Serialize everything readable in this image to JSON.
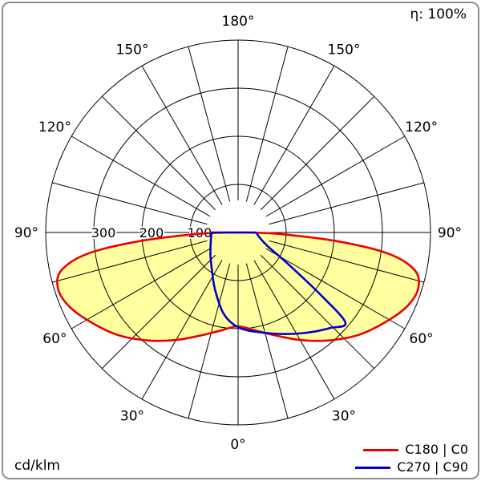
{
  "header": {
    "efficiency": "η: 100%"
  },
  "footer": {
    "units": "cd/klm"
  },
  "chart_data": {
    "type": "polar",
    "subtype": "luminous-intensity-distribution",
    "units": "cd/klm",
    "efficiency": "η: 100%",
    "grid_step_deg": 15,
    "angle_label_step_deg": 30,
    "angle_labels": [
      "0°",
      "30°",
      "60°",
      "90°",
      "120°",
      "150°",
      "180°"
    ],
    "radial_ticks": [
      100,
      200,
      300
    ],
    "radial_max": 400,
    "grid_color": "#000000",
    "series": [
      {
        "name": "C180 | C0",
        "left_plane": "C180",
        "right_plane": "C0",
        "color": "#ee0000",
        "fill": "#ffffa0",
        "left": {
          "angles_deg": [
            0,
            10,
            20,
            30,
            40,
            50,
            60,
            67,
            73,
            78,
            82,
            85,
            88,
            90
          ],
          "values_cd_klm": [
            195,
            207,
            228,
            258,
            293,
            330,
            363,
            385,
            392,
            375,
            315,
            205,
            85,
            20
          ]
        },
        "right": {
          "angles_deg": [
            0,
            10,
            20,
            30,
            40,
            50,
            60,
            67,
            73,
            78,
            82,
            85,
            88,
            90
          ],
          "values_cd_klm": [
            195,
            207,
            228,
            258,
            293,
            330,
            363,
            385,
            392,
            375,
            315,
            205,
            85,
            20
          ]
        }
      },
      {
        "name": "C270 | C90",
        "left_plane": "C270",
        "right_plane": "C90",
        "color": "#0000cc",
        "fill": "none",
        "left": {
          "angles_deg": [
            0,
            10,
            22,
            35,
            50,
            65,
            80,
            90
          ],
          "values_cd_klm": [
            197,
            172,
            128,
            95,
            75,
            63,
            57,
            55
          ]
        },
        "right": {
          "angles_deg": [
            0,
            12,
            25,
            35,
            44,
            50,
            53,
            58,
            65,
            75,
            85,
            90
          ],
          "values_cd_klm": [
            197,
            212,
            233,
            254,
            276,
            291,
            213,
            120,
            68,
            48,
            40,
            37
          ]
        }
      }
    ]
  }
}
